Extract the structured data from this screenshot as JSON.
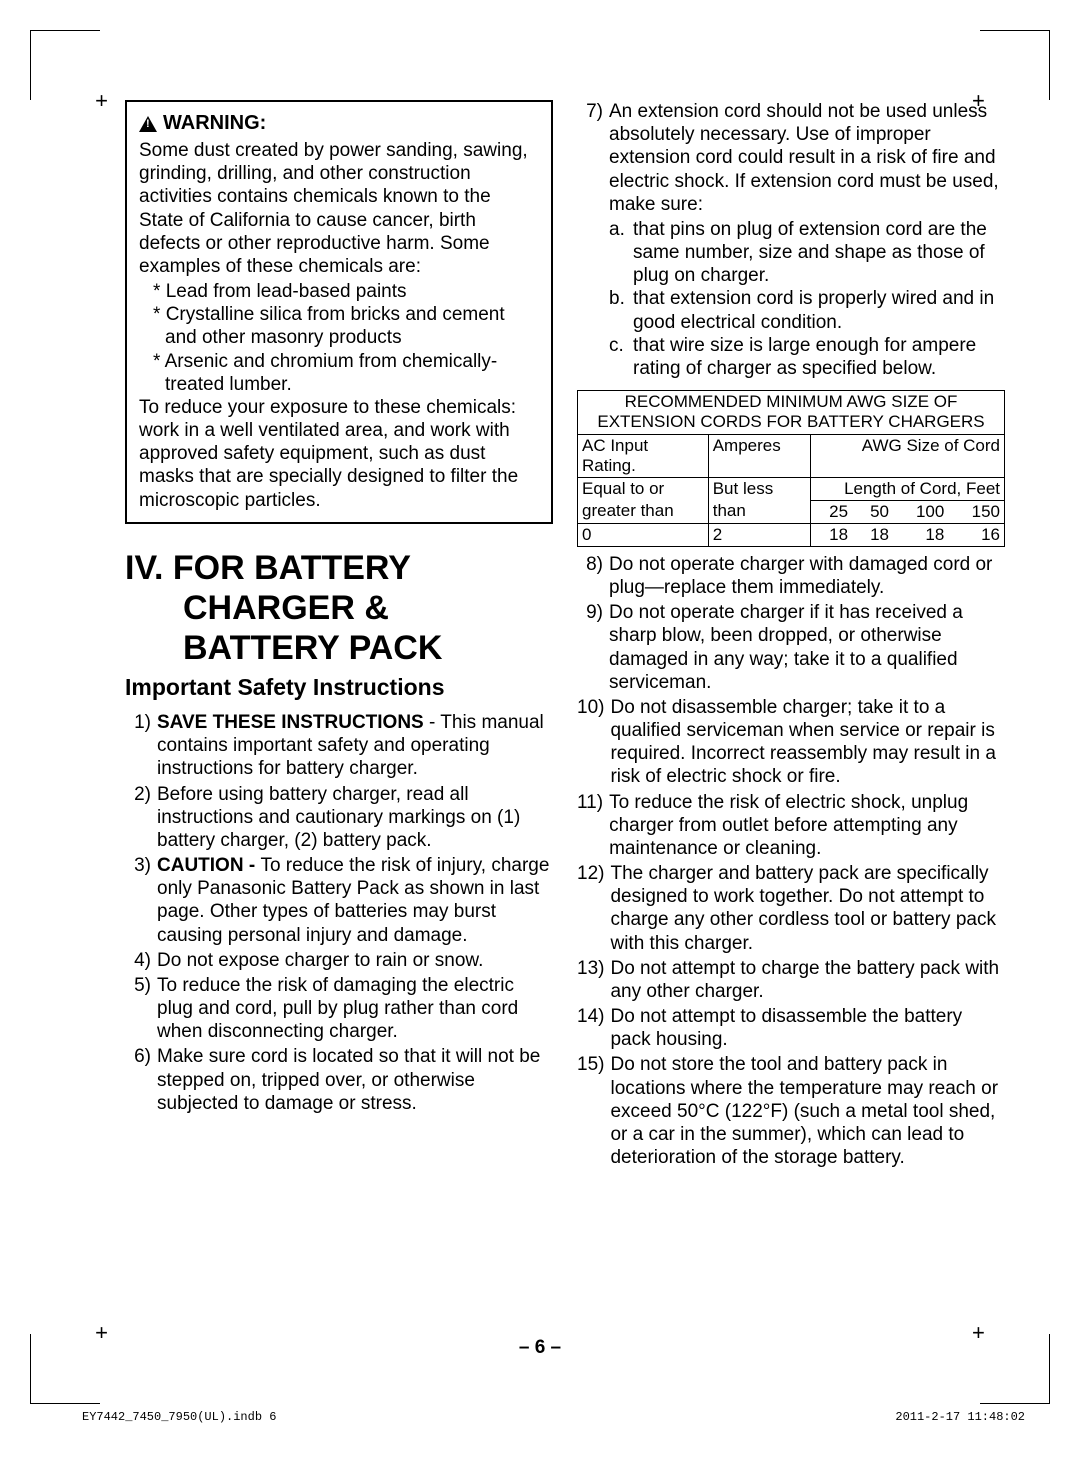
{
  "warning": {
    "title": "WARNING:",
    "para1": "Some dust created by power sanding, sawing, grinding, drilling, and other construction activities contains chemicals known to the State of California to cause cancer, birth defects or other reproductive harm. Some examples of these chemicals are:",
    "bullets": [
      "Lead from lead-based paints",
      "Crystalline silica from bricks and cement and other masonry products",
      "Arsenic and chromium from chemically-treated lumber."
    ],
    "para2": "To reduce your exposure to these chemicals: work in a well ventilated area, and work with approved safety equipment, such as dust masks that are specially designed to filter the microscopic particles."
  },
  "section": {
    "num": "IV.",
    "title_l1": "FOR BATTERY",
    "title_l2": "CHARGER &",
    "title_l3": "BATTERY PACK",
    "subtitle": "Important Safety Instructions"
  },
  "items_left": [
    {
      "n": "1)",
      "bold": "SAVE THESE INSTRUCTIONS",
      "rest": " - This manual contains important safety and operating instructions for battery charger."
    },
    {
      "n": "2)",
      "text": "Before using battery charger, read all instructions and cautionary markings on (1) battery charger, (2) battery pack."
    },
    {
      "n": "3)",
      "bold": "CAUTION - ",
      "rest": "To reduce the risk of injury, charge only Panasonic Battery Pack as shown in last page. Other types of batteries may burst causing personal injury and damage."
    },
    {
      "n": "4)",
      "text": "Do not expose charger to rain or snow."
    },
    {
      "n": "5)",
      "text": "To reduce the risk of damaging the electric plug and cord, pull by plug rather than cord when disconnecting charger."
    },
    {
      "n": "6)",
      "text": "Make sure cord is located so that it will not be stepped on, tripped over, or otherwise subjected to damage or stress."
    }
  ],
  "item7": {
    "n": "7)",
    "text": "An extension cord should not be used unless absolutely necessary. Use of improper extension cord could result in a risk of fire and electric shock. If extension cord must be used, make sure:",
    "subs": [
      {
        "l": "a.",
        "t": "that pins on plug of extension cord are the same number, size and shape as those of plug on charger."
      },
      {
        "l": "b.",
        "t": "that extension cord is properly wired and in good electrical condition."
      },
      {
        "l": "c.",
        "t": "that wire size is large enough for ampere rating of charger as specified below."
      }
    ]
  },
  "table": {
    "header": "RECOMMENDED MINIMUM AWG SIZE OF EXTENSION CORDS FOR BATTERY CHARGERS",
    "row1": [
      "AC Input Rating.",
      "Amperes",
      "AWG Size of Cord"
    ],
    "row2a": [
      "Equal to or",
      "But less",
      "Length of Cord, Feet"
    ],
    "row2b": [
      "greater than",
      "than",
      "25",
      "50",
      "100",
      "150"
    ],
    "row3": [
      "0",
      "2",
      "18",
      "18",
      "18",
      "16"
    ]
  },
  "items_right": [
    {
      "n": "8)",
      "text": "Do not operate charger with damaged cord or plug―replace them immediately."
    },
    {
      "n": "9)",
      "text": "Do not operate charger if it has received a sharp blow, been dropped, or otherwise damaged in any way; take it to a qualified serviceman."
    },
    {
      "n": "10)",
      "text": "Do not disassemble charger; take it to a qualified serviceman when service or repair is required. Incorrect reassembly may result in a risk of electric shock or fire."
    },
    {
      "n": "11)",
      "text": "To reduce the risk of electric shock, unplug charger from outlet before attempting any maintenance or cleaning."
    },
    {
      "n": "12)",
      "text": "The charger and battery pack are specifically designed to work together. Do not attempt to charge any other cordless tool or battery pack with this charger."
    },
    {
      "n": "13)",
      "text": "Do not attempt to charge the battery pack with any other charger."
    },
    {
      "n": "14)",
      "text": "Do not attempt to disassemble the battery pack housing."
    },
    {
      "n": "15)",
      "text": "Do not store the tool and battery pack in locations where the temperature may reach or exceed 50°C (122°F) (such a metal tool shed, or a car in the summer), which can lead to deterioration of the storage battery."
    }
  ],
  "page_num": "– 6 –",
  "footer": {
    "left": "EY7442_7450_7950(UL).indb   6",
    "right": "2011-2-17   11:48:02"
  }
}
